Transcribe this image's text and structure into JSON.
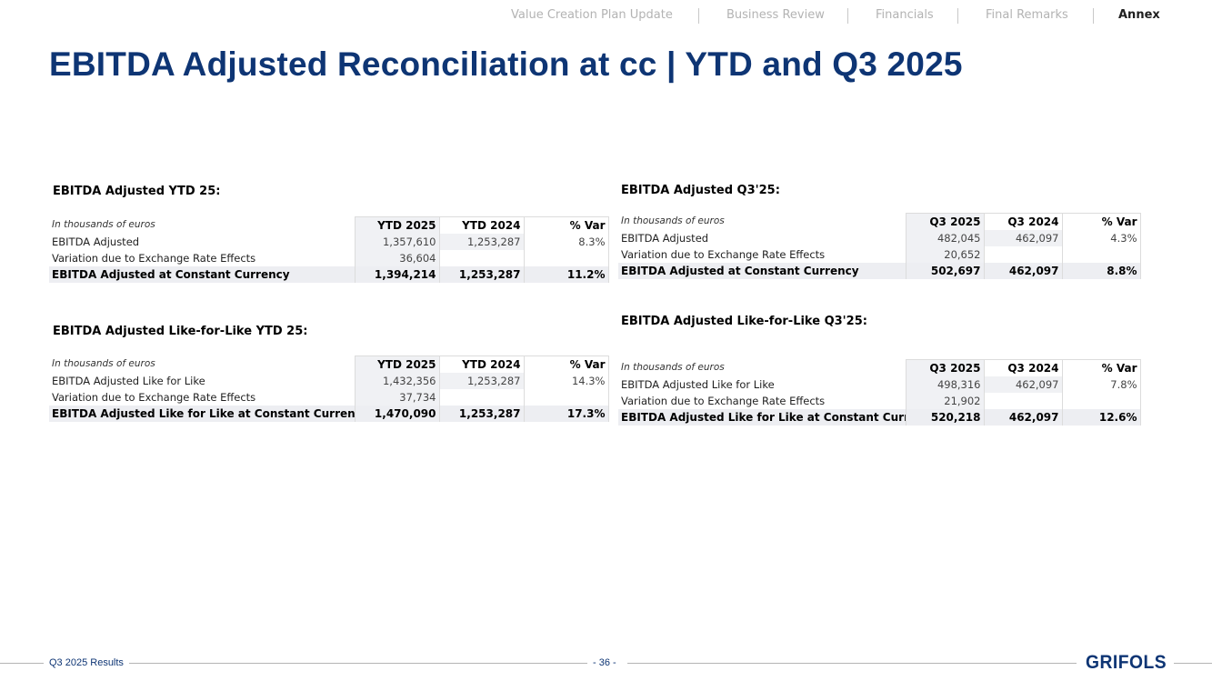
{
  "nav": {
    "items": [
      "Value Creation Plan Update",
      "Business Review",
      "Financials",
      "Final Remarks",
      "Annex"
    ],
    "active": "Annex"
  },
  "page_title": "EBITDA Adjusted Reconciliation at cc | YTD and Q3 2025",
  "tables": {
    "ytd": {
      "title": "EBITDA Adjusted YTD 25:",
      "unit_label": "In thousands of euros",
      "headers": [
        "YTD 2025",
        "YTD 2024",
        "% Var"
      ],
      "rows": [
        {
          "label": "EBITDA Adjusted",
          "c1": "1,357,610",
          "c2": "1,253,287",
          "c3": "8.3%"
        },
        {
          "label": "Variation due to Exchange Rate Effects",
          "c1": "36,604",
          "c2": "",
          "c3": ""
        }
      ],
      "total": {
        "label": "EBITDA Adjusted at Constant Currency",
        "c1": "1,394,214",
        "c2": "1,253,287",
        "c3": "11.2%"
      }
    },
    "q3": {
      "title": "EBITDA Adjusted Q3'25:",
      "unit_label": "In thousands of euros",
      "headers": [
        "Q3 2025",
        "Q3 2024",
        "% Var"
      ],
      "rows": [
        {
          "label": "EBITDA Adjusted",
          "c1": "482,045",
          "c2": "462,097",
          "c3": "4.3%"
        },
        {
          "label": "Variation due to Exchange Rate Effects",
          "c1": "20,652",
          "c2": "",
          "c3": ""
        }
      ],
      "total": {
        "label": "EBITDA Adjusted at Constant Currency",
        "c1": "502,697",
        "c2": "462,097",
        "c3": "8.8%"
      }
    },
    "lfl_ytd": {
      "title": "EBITDA Adjusted Like-for-Like YTD 25:",
      "unit_label": "In thousands of euros",
      "headers": [
        "YTD 2025",
        "YTD 2024",
        "% Var"
      ],
      "rows": [
        {
          "label": "EBITDA Adjusted Like for Like",
          "c1": "1,432,356",
          "c2": "1,253,287",
          "c3": "14.3%"
        },
        {
          "label": "Variation due to Exchange Rate Effects",
          "c1": "37,734",
          "c2": "",
          "c3": ""
        }
      ],
      "total": {
        "label": "EBITDA Adjusted Like for Like at Constant Currency",
        "c1": "1,470,090",
        "c2": "1,253,287",
        "c3": "17.3%"
      }
    },
    "lfl_q3": {
      "title": "EBITDA Adjusted Like-for-Like Q3'25:",
      "unit_label": "In thousands of euros",
      "headers": [
        "Q3 2025",
        "Q3 2024",
        "% Var"
      ],
      "rows": [
        {
          "label": "EBITDA Adjusted Like for Like",
          "c1": "498,316",
          "c2": "462,097",
          "c3": "7.8%"
        },
        {
          "label": "Variation due to Exchange Rate Effects",
          "c1": "21,902",
          "c2": "",
          "c3": ""
        }
      ],
      "total": {
        "label": "EBITDA Adjusted Like for Like at Constant Currency",
        "c1": "520,218",
        "c2": "462,097",
        "c3": "12.6%"
      }
    }
  },
  "footer": {
    "left": "Q3 2025 Results",
    "page": "- 36 -",
    "logo": "GRIFOLS"
  },
  "colors": {
    "brand_blue": "#0e3574",
    "nav_inactive": "#b3b3b3",
    "nav_active": "#1f1f1f",
    "cell_gray": "#f0f1f4"
  }
}
